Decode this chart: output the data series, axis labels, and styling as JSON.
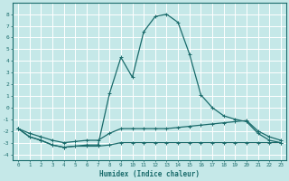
{
  "xlabel": "Humidex (Indice chaleur)",
  "bg_color": "#c5e8e8",
  "grid_color": "#ffffff",
  "line_color": "#1a6b6b",
  "xlim": [
    -0.5,
    23.5
  ],
  "ylim": [
    -4.5,
    9.0
  ],
  "xticks": [
    0,
    1,
    2,
    3,
    4,
    5,
    6,
    7,
    8,
    9,
    10,
    11,
    12,
    13,
    14,
    15,
    16,
    17,
    18,
    19,
    20,
    21,
    22,
    23
  ],
  "yticks": [
    -4,
    -3,
    -2,
    -1,
    0,
    1,
    2,
    3,
    4,
    5,
    6,
    7,
    8
  ],
  "series_main": {
    "x": [
      0,
      1,
      2,
      3,
      4,
      5,
      6,
      7,
      8,
      9,
      10,
      11,
      12,
      13,
      14,
      15,
      16,
      17,
      18,
      19,
      20,
      21,
      22,
      23
    ],
    "y": [
      -1.8,
      -2.5,
      -2.8,
      -3.2,
      -3.4,
      -3.3,
      -3.2,
      -3.2,
      1.2,
      4.3,
      2.6,
      6.5,
      7.8,
      8.0,
      7.3,
      4.6,
      1.1,
      0.0,
      -0.7,
      -1.0,
      -1.2,
      -2.2,
      -2.8,
      -3.0
    ]
  },
  "series_mid": {
    "x": [
      0,
      1,
      2,
      3,
      4,
      5,
      6,
      7,
      8,
      9,
      10,
      11,
      12,
      13,
      14,
      15,
      16,
      17,
      18,
      19,
      20,
      21,
      22,
      23
    ],
    "y": [
      -1.8,
      -2.2,
      -2.5,
      -2.8,
      -3.0,
      -2.9,
      -2.8,
      -2.8,
      -2.2,
      -1.8,
      -1.8,
      -1.8,
      -1.8,
      -1.8,
      -1.7,
      -1.6,
      -1.5,
      -1.4,
      -1.3,
      -1.2,
      -1.1,
      -2.0,
      -2.5,
      -2.8
    ]
  },
  "series_flat": {
    "x": [
      0,
      1,
      2,
      3,
      4,
      5,
      6,
      7,
      8,
      9,
      10,
      11,
      12,
      13,
      14,
      15,
      16,
      17,
      18,
      19,
      20,
      21,
      22,
      23
    ],
    "y": [
      -1.8,
      -2.5,
      -2.8,
      -3.2,
      -3.4,
      -3.3,
      -3.3,
      -3.3,
      -3.2,
      -3.0,
      -3.0,
      -3.0,
      -3.0,
      -3.0,
      -3.0,
      -3.0,
      -3.0,
      -3.0,
      -3.0,
      -3.0,
      -3.0,
      -3.0,
      -3.0,
      -3.0
    ]
  }
}
